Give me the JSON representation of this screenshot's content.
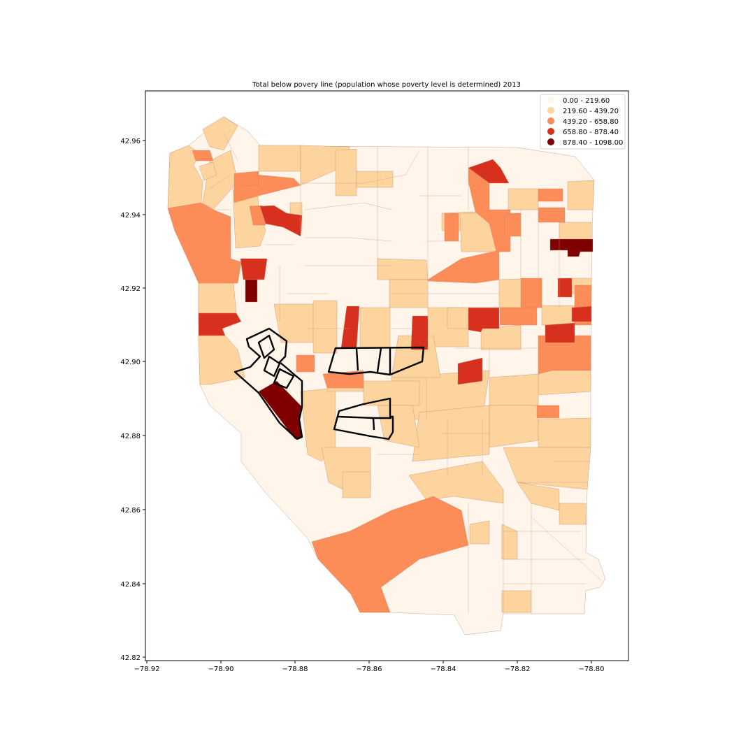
{
  "title": "Total below povery line (population whose poverty level is determined) 2013",
  "axes": {
    "x_ticks": [
      "−78.92",
      "−78.90",
      "−78.88",
      "−78.86",
      "−78.84",
      "−78.82",
      "−78.80"
    ],
    "y_ticks": [
      "42.82",
      "42.84",
      "42.86",
      "42.88",
      "42.90",
      "42.92",
      "42.94",
      "42.96"
    ]
  },
  "legend": {
    "placement": "top-right",
    "items": [
      {
        "label": "0.00 - 219.60",
        "color": "#fff5eb"
      },
      {
        "label": "219.60 - 439.20",
        "color": "#fdd49e"
      },
      {
        "label": "439.20 - 658.80",
        "color": "#fc8d59"
      },
      {
        "label": "658.80 - 878.40",
        "color": "#d7301f"
      },
      {
        "label": "878.40 - 1098.00",
        "color": "#7f0000"
      }
    ]
  },
  "map": {
    "type": "choropleth",
    "highlighted_groups": 3
  }
}
